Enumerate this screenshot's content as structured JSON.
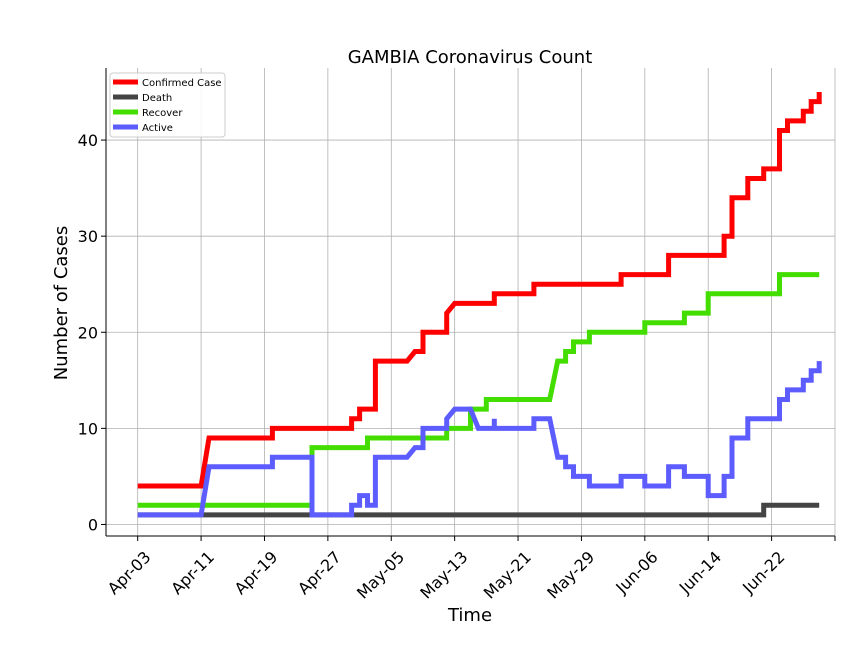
{
  "chart_data": {
    "type": "line",
    "title": "GAMBIA Coronavirus Count",
    "xlabel": "Time",
    "ylabel": "Number of Cases",
    "x_ticks": [
      "Apr-03",
      "Apr-11",
      "Apr-19",
      "Apr-27",
      "May-05",
      "May-13",
      "May-21",
      "May-29",
      "Jun-06",
      "Jun-14",
      "Jun-22"
    ],
    "y_ticks": [
      0,
      10,
      20,
      30,
      40
    ],
    "ylim": [
      -1.2,
      47.5
    ],
    "x_range_days": [
      -4,
      88
    ],
    "start_date": "Apr-03",
    "grid": true,
    "legend_position": "top-left",
    "step": true,
    "series": [
      {
        "name": "Confirmed Case",
        "color": "#ff0000",
        "points": [
          [
            0,
            4
          ],
          [
            8,
            4
          ],
          [
            9,
            9
          ],
          [
            17,
            9
          ],
          [
            17,
            10
          ],
          [
            27,
            10
          ],
          [
            27,
            11
          ],
          [
            28,
            11
          ],
          [
            28,
            12
          ],
          [
            30,
            12
          ],
          [
            30,
            17
          ],
          [
            34,
            17
          ],
          [
            35,
            18
          ],
          [
            36,
            18
          ],
          [
            36,
            20
          ],
          [
            39,
            20
          ],
          [
            39,
            22
          ],
          [
            40,
            23
          ],
          [
            45,
            23
          ],
          [
            45,
            24
          ],
          [
            50,
            24
          ],
          [
            50,
            25
          ],
          [
            61,
            25
          ],
          [
            61,
            26
          ],
          [
            67,
            26
          ],
          [
            67,
            28
          ],
          [
            74,
            28
          ],
          [
            74,
            30
          ],
          [
            75,
            30
          ],
          [
            75,
            34
          ],
          [
            77,
            34
          ],
          [
            77,
            36
          ],
          [
            79,
            36
          ],
          [
            79,
            37
          ],
          [
            81,
            37
          ],
          [
            81,
            41
          ],
          [
            82,
            41
          ],
          [
            82,
            42
          ],
          [
            84,
            42
          ],
          [
            84,
            43
          ],
          [
            85,
            43
          ],
          [
            85,
            44
          ],
          [
            86,
            44
          ],
          [
            86,
            45
          ]
        ]
      },
      {
        "name": "Death",
        "color": "#444444",
        "points": [
          [
            0,
            1
          ],
          [
            79,
            1
          ],
          [
            79,
            2
          ],
          [
            86,
            2
          ]
        ]
      },
      {
        "name": "Recover",
        "color": "#44dd00",
        "points": [
          [
            0,
            2
          ],
          [
            22,
            2
          ],
          [
            22,
            8
          ],
          [
            29,
            8
          ],
          [
            29,
            9
          ],
          [
            39,
            9
          ],
          [
            39,
            10
          ],
          [
            42,
            10
          ],
          [
            42,
            12
          ],
          [
            44,
            12
          ],
          [
            44,
            13
          ],
          [
            52,
            13
          ],
          [
            53,
            17
          ],
          [
            54,
            17
          ],
          [
            54,
            18
          ],
          [
            55,
            18
          ],
          [
            55,
            19
          ],
          [
            57,
            19
          ],
          [
            57,
            20
          ],
          [
            64,
            20
          ],
          [
            64,
            21
          ],
          [
            69,
            21
          ],
          [
            69,
            22
          ],
          [
            72,
            22
          ],
          [
            72,
            24
          ],
          [
            81,
            24
          ],
          [
            81,
            26
          ],
          [
            86,
            26
          ]
        ]
      },
      {
        "name": "Active",
        "color": "#5c5cff",
        "points": [
          [
            0,
            1
          ],
          [
            8,
            1
          ],
          [
            9,
            6
          ],
          [
            17,
            6
          ],
          [
            17,
            7
          ],
          [
            22,
            7
          ],
          [
            22,
            1
          ],
          [
            27,
            1
          ],
          [
            27,
            2
          ],
          [
            28,
            2
          ],
          [
            28,
            3
          ],
          [
            29,
            3
          ],
          [
            29,
            2
          ],
          [
            30,
            2
          ],
          [
            30,
            7
          ],
          [
            34,
            7
          ],
          [
            35,
            8
          ],
          [
            36,
            8
          ],
          [
            36,
            10
          ],
          [
            39,
            10
          ],
          [
            39,
            11
          ],
          [
            40,
            12
          ],
          [
            42,
            12
          ],
          [
            43,
            10
          ],
          [
            45,
            10
          ],
          [
            45,
            11
          ],
          [
            45,
            10
          ],
          [
            50,
            10
          ],
          [
            50,
            11
          ],
          [
            52,
            11
          ],
          [
            53,
            7
          ],
          [
            54,
            7
          ],
          [
            54,
            6
          ],
          [
            55,
            6
          ],
          [
            55,
            5
          ],
          [
            57,
            5
          ],
          [
            57,
            4
          ],
          [
            61,
            4
          ],
          [
            61,
            5
          ],
          [
            64,
            5
          ],
          [
            64,
            4
          ],
          [
            67,
            4
          ],
          [
            67,
            6
          ],
          [
            69,
            6
          ],
          [
            69,
            5
          ],
          [
            72,
            5
          ],
          [
            72,
            3
          ],
          [
            74,
            3
          ],
          [
            74,
            5
          ],
          [
            75,
            5
          ],
          [
            75,
            9
          ],
          [
            77,
            9
          ],
          [
            77,
            11
          ],
          [
            81,
            11
          ],
          [
            81,
            13
          ],
          [
            82,
            13
          ],
          [
            82,
            14
          ],
          [
            84,
            14
          ],
          [
            84,
            15
          ],
          [
            85,
            15
          ],
          [
            85,
            16
          ],
          [
            86,
            16
          ],
          [
            86,
            17
          ]
        ]
      }
    ]
  }
}
